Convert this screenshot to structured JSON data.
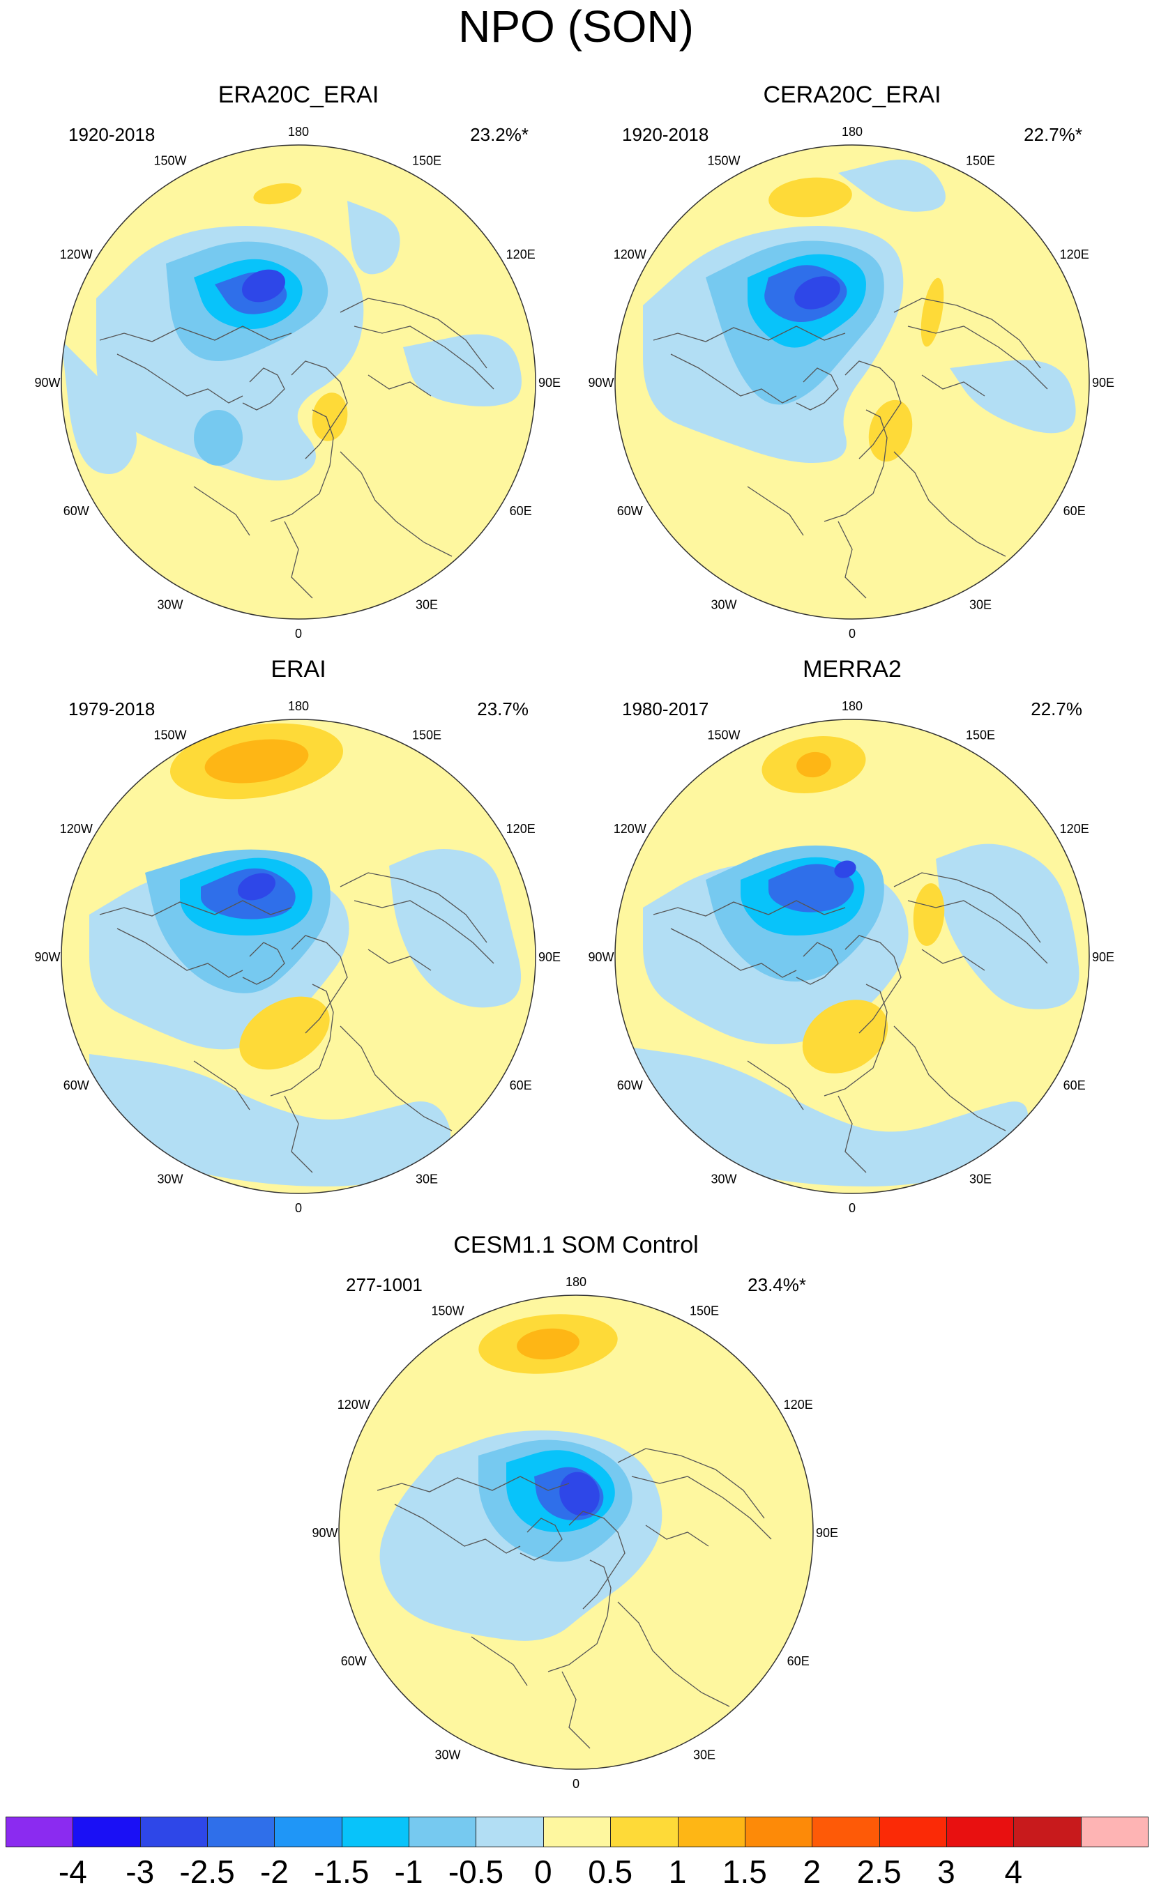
{
  "figure": {
    "title": "NPO (SON)"
  },
  "colors": {
    "levels": [
      "#8B2BF0",
      "#1A10F5",
      "#2E47E8",
      "#2F6FEA",
      "#1F96F7",
      "#08C3FA",
      "#76C9F0",
      "#B2DEF4",
      "#FEF79F",
      "#FEDA38",
      "#FEB615",
      "#FD8A08",
      "#FE5A07",
      "#FB2A06",
      "#E81010",
      "#C81A1C",
      "#FEB4B4"
    ],
    "coast": "#555555",
    "border": "#333333"
  },
  "panels": [
    {
      "title": "ERA20C_ERAI",
      "period": "1920-2018",
      "variance": "23.2%*"
    },
    {
      "title": "CERA20C_ERAI",
      "period": "1920-2018",
      "variance": "22.7%*"
    },
    {
      "title": "ERAI",
      "period": "1979-2018",
      "variance": "23.7%"
    },
    {
      "title": "MERRA2",
      "period": "1980-2017",
      "variance": "22.7%"
    },
    {
      "title": "CESM1.1 SOM Control",
      "period": "277-1001",
      "variance": "23.4%*"
    }
  ],
  "lon_labels": [
    "180",
    "150E",
    "120E",
    "90E",
    "60E",
    "30E",
    "0",
    "30W",
    "60W",
    "90W",
    "120W",
    "150W"
  ],
  "colorbar": {
    "labels": [
      "-4",
      "-3",
      "-2.5",
      "-2",
      "-1.5",
      "-1",
      "-0.5",
      "0",
      "0.5",
      "1",
      "1.5",
      "2",
      "2.5",
      "3",
      "4"
    ]
  }
}
